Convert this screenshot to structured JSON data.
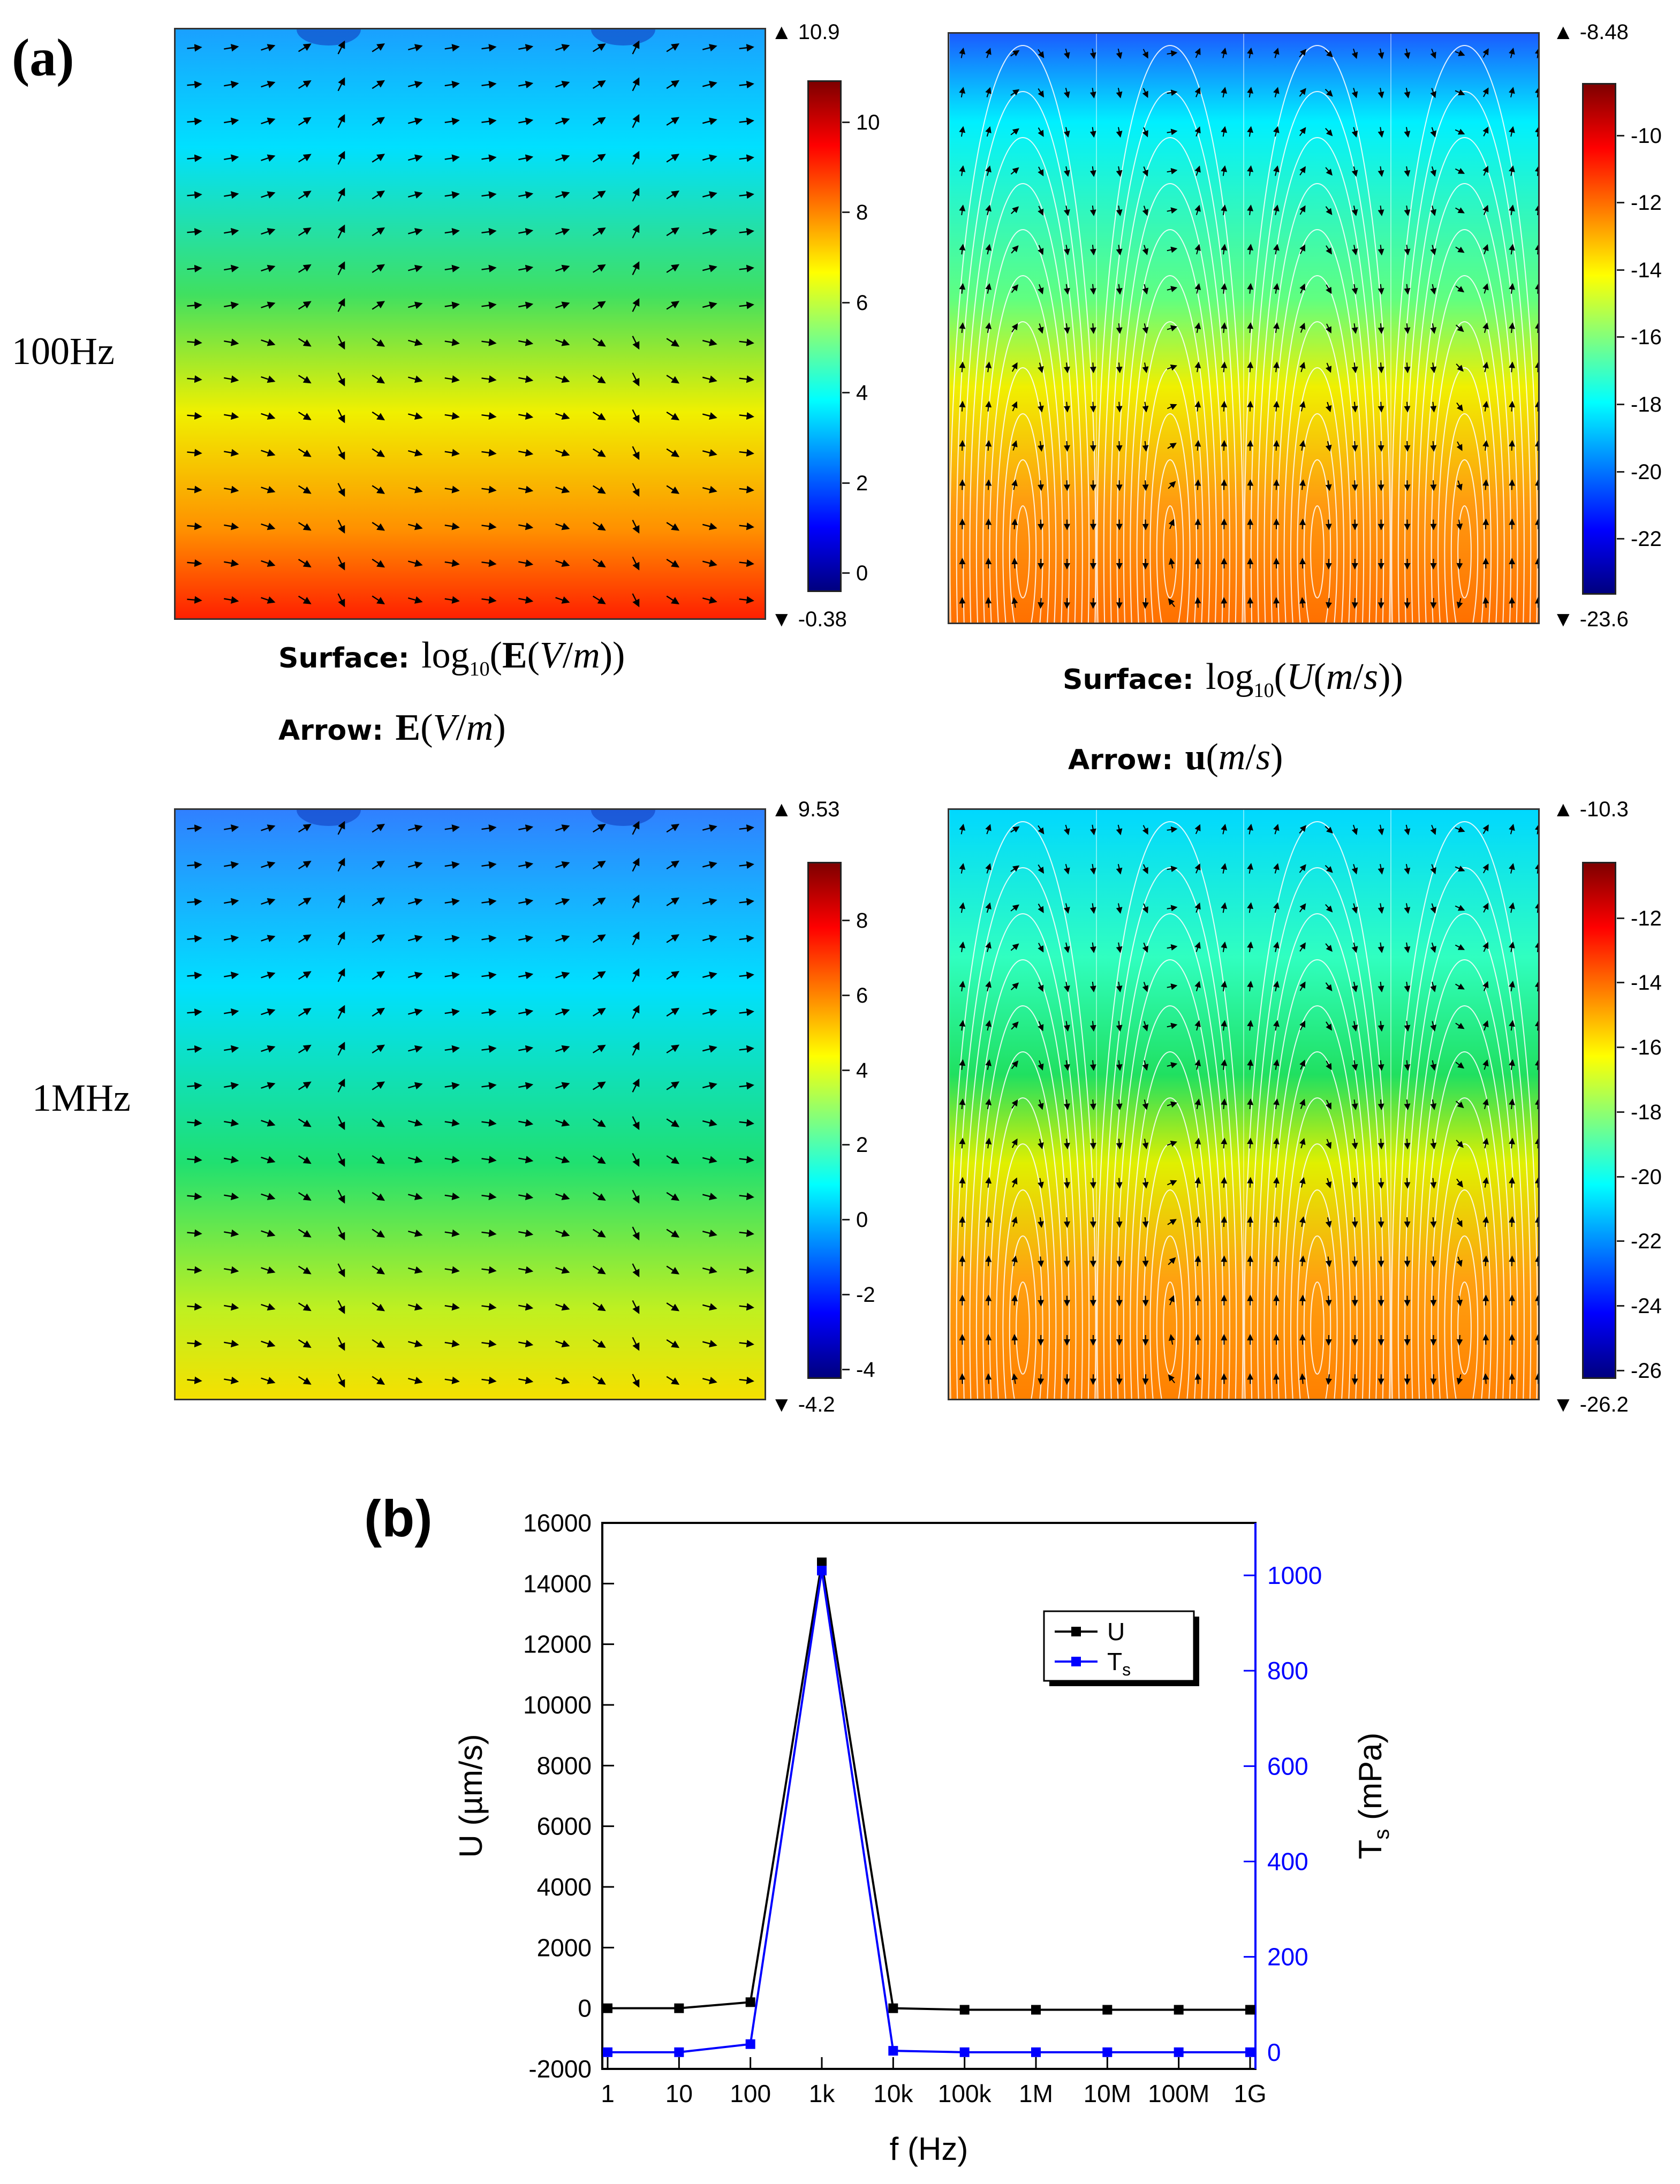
{
  "panel_a": {
    "label": "(a)",
    "rows": [
      {
        "label": "100Hz"
      },
      {
        "label": "1MHz"
      }
    ],
    "e_field": {
      "caption_surface_prefix": "Surface:",
      "caption_surface_expr": "log10(E(V/m))",
      "caption_surface_parts": {
        "log": "log",
        "sub": "10",
        "vec": "E",
        "unit_open": "(",
        "unit_num": "V",
        "unit_slash": "/",
        "unit_den": "m",
        "unit_close": ")"
      },
      "caption_arrow_prefix": "Arrow:",
      "caption_arrow_expr": "E(V/m)",
      "maps": [
        {
          "max_label": "10.9",
          "min_label": "-0.38",
          "ticks": [
            "10",
            "8",
            "6",
            "4",
            "2",
            "0"
          ],
          "tick_values": [
            10,
            8,
            6,
            4,
            2,
            0
          ],
          "range": [
            -0.38,
            10.9
          ]
        },
        {
          "max_label": "9.53",
          "min_label": "-4.2",
          "ticks": [
            "8",
            "6",
            "4",
            "2",
            "0",
            "-2",
            "-4"
          ],
          "tick_values": [
            8,
            6,
            4,
            2,
            0,
            -2,
            -4
          ],
          "range": [
            -4.2,
            9.53
          ]
        }
      ]
    },
    "velocity": {
      "caption_surface_prefix": "Surface:",
      "caption_surface_expr": "log10(U(m/s))",
      "caption_surface_parts": {
        "log": "log",
        "sub": "10",
        "sym": "U",
        "unit_num": "m",
        "unit_slash": "/",
        "unit_den": "s"
      },
      "caption_arrow_prefix": "Arrow:",
      "caption_arrow_expr": "u(m/s)",
      "maps": [
        {
          "max_label": "-8.48",
          "min_label": "-23.6",
          "ticks": [
            "-10",
            "-12",
            "-14",
            "-16",
            "-18",
            "-20",
            "-22"
          ],
          "tick_values": [
            -10,
            -12,
            -14,
            -16,
            -18,
            -20,
            -22
          ],
          "range": [
            -23.6,
            -8.48
          ]
        },
        {
          "max_label": "-10.3",
          "min_label": "-26.2",
          "ticks": [
            "-12",
            "-14",
            "-16",
            "-18",
            "-20",
            "-22",
            "-24",
            "-26"
          ],
          "tick_values": [
            -12,
            -14,
            -16,
            -18,
            -20,
            -22,
            -24,
            -26
          ],
          "range": [
            -26.2,
            -10.3
          ]
        }
      ]
    },
    "colors": {
      "jet": [
        "#00007f",
        "#0000ff",
        "#007fff",
        "#00ffff",
        "#7fff7f",
        "#ffff00",
        "#ff7f00",
        "#ff0000",
        "#7f0000"
      ]
    }
  },
  "chart_data": {
    "type": "line",
    "label": "(b)",
    "xlabel": "f (Hz)",
    "ylabel": "U (µm/s)",
    "y2label_main": "T",
    "y2label_sub": "s",
    "y2label_unit": " (mPa)",
    "categories": [
      "1",
      "10",
      "100",
      "1k",
      "10k",
      "100k",
      "1M",
      "10M",
      "100M",
      "1G"
    ],
    "series": [
      {
        "name": "U",
        "axis": "left",
        "color": "#000000",
        "values": [
          0,
          0,
          200,
          14700,
          0,
          -50,
          -50,
          -50,
          -50,
          -50
        ]
      },
      {
        "name": "Ts",
        "axis": "right",
        "color": "#0000ff",
        "values": [
          0,
          0,
          17,
          1010,
          3,
          0,
          0,
          0,
          0,
          0
        ]
      }
    ],
    "legend": [
      {
        "main": "U",
        "sub": ""
      },
      {
        "main": "T",
        "sub": "s"
      }
    ],
    "legend_position": "top-right",
    "ylim": [
      -2000,
      16000
    ],
    "yticks": [
      -2000,
      0,
      2000,
      4000,
      6000,
      8000,
      10000,
      12000,
      14000,
      16000
    ],
    "y2lim": [
      -35,
      1110
    ],
    "y2ticks": [
      0,
      200,
      400,
      600,
      800,
      1000
    ],
    "colors": {
      "left_axis": "#000000",
      "right_axis": "#0000ff"
    }
  }
}
